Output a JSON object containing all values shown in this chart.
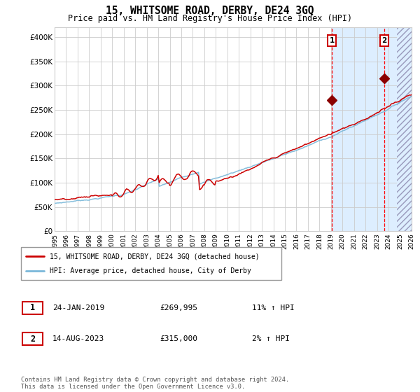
{
  "title": "15, WHITSOME ROAD, DERBY, DE24 3GQ",
  "subtitle": "Price paid vs. HM Land Registry's House Price Index (HPI)",
  "x_start_year": 1995,
  "x_end_year": 2026,
  "ylim": [
    0,
    420000
  ],
  "yticks": [
    0,
    50000,
    100000,
    150000,
    200000,
    250000,
    300000,
    350000,
    400000
  ],
  "hpi_color": "#7ab8d9",
  "price_color": "#cc0000",
  "marker_color": "#8b0000",
  "vline_color": "#ff0000",
  "bg_highlight_color": "#ddeeff",
  "point1_year": 2019.07,
  "point1_value": 269995,
  "point2_year": 2023.62,
  "point2_value": 315000,
  "legend_line1": "15, WHITSOME ROAD, DERBY, DE24 3GQ (detached house)",
  "legend_line2": "HPI: Average price, detached house, City of Derby",
  "ann1_label": "1",
  "ann1_date": "24-JAN-2019",
  "ann1_price": "£269,995",
  "ann1_hpi": "11% ↑ HPI",
  "ann2_label": "2",
  "ann2_date": "14-AUG-2023",
  "ann2_price": "£315,000",
  "ann2_hpi": "2% ↑ HPI",
  "footer": "Contains HM Land Registry data © Crown copyright and database right 2024.\nThis data is licensed under the Open Government Licence v3.0."
}
